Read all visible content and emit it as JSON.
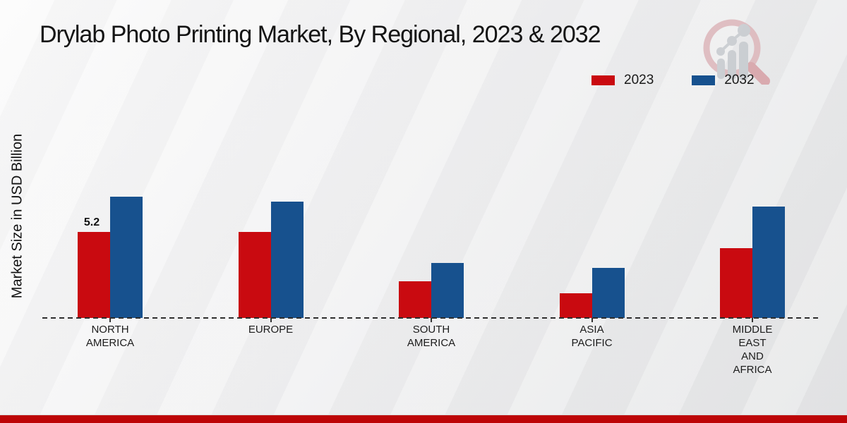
{
  "title": "Drylab Photo Printing Market, By Regional, 2023 & 2032",
  "y_axis_label": "Market Size in USD Billion",
  "legend": [
    {
      "label": "2023",
      "color": "#c90a10"
    },
    {
      "label": "2032",
      "color": "#17518e"
    }
  ],
  "footer_color": "#bd0507",
  "logo_name": "magnifier-bar-chart-watermark",
  "chart_data": {
    "type": "bar",
    "title": "Drylab Photo Printing Market, By Regional, 2023 & 2032",
    "ylabel": "Market Size in USD Billion",
    "categories": [
      "NORTH AMERICA",
      "EUROPE",
      "SOUTH AMERICA",
      "ASIA PACIFIC",
      "MIDDLE EAST AND AFRICA"
    ],
    "category_label_lines": [
      "NORTH\nAMERICA",
      "EUROPE",
      "SOUTH\nAMERICA",
      "ASIA\nPACIFIC",
      "MIDDLE\nEAST\nAND\nAFRICA"
    ],
    "series": [
      {
        "name": "2023",
        "color": "#c90a10",
        "values": [
          5.2,
          5.2,
          2.2,
          1.5,
          4.2
        ]
      },
      {
        "name": "2032",
        "color": "#17518e",
        "values": [
          7.3,
          7.0,
          3.3,
          3.0,
          6.7
        ]
      }
    ],
    "data_labels": [
      {
        "series": "2023",
        "category": "NORTH AMERICA",
        "text": "5.2"
      }
    ],
    "ylim": [
      0,
      8
    ],
    "grid": false,
    "legend_position": "top-right",
    "x_axis_style": "dashed"
  }
}
